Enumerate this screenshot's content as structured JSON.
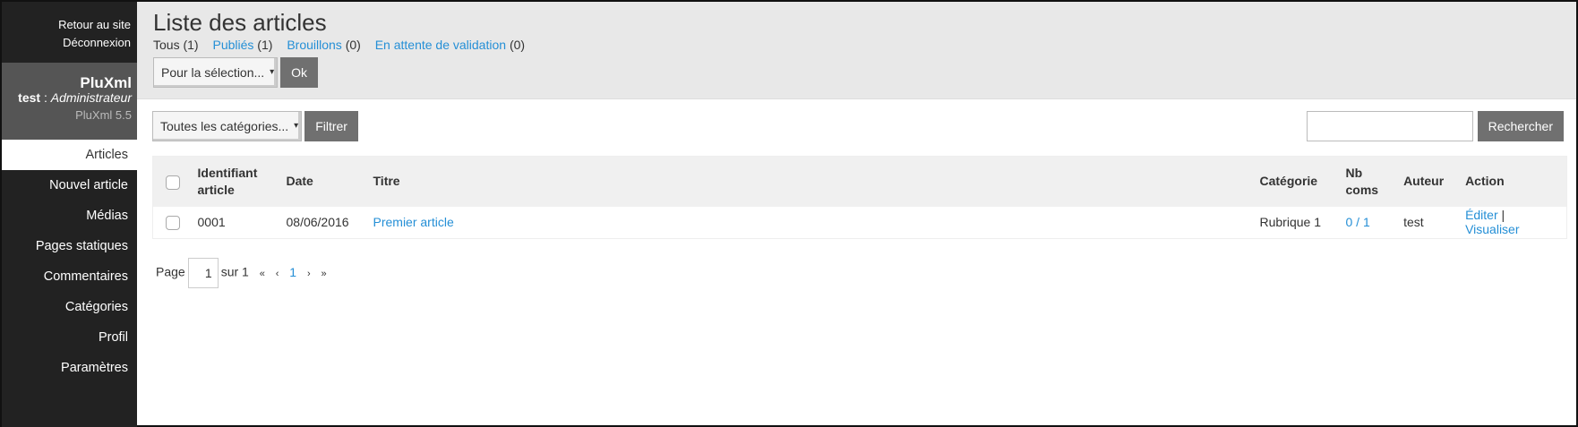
{
  "sidebar": {
    "back_link": "Retour au site",
    "logout_link": "Déconnexion",
    "app_name": "PluXml",
    "user_name": "test",
    "user_role": "Administrateur",
    "version": "PluXml 5.5",
    "items": [
      {
        "label": "Articles",
        "active": true
      },
      {
        "label": "Nouvel article"
      },
      {
        "label": "Médias"
      },
      {
        "label": "Pages statiques"
      },
      {
        "label": "Commentaires"
      },
      {
        "label": "Catégories"
      },
      {
        "label": "Profil"
      },
      {
        "label": "Paramètres"
      }
    ]
  },
  "header": {
    "title": "Liste des articles",
    "filters": [
      {
        "label": "Tous",
        "count": "(1)"
      },
      {
        "label": "Publiés",
        "count": "(1)"
      },
      {
        "label": "Brouillons",
        "count": "(0)"
      },
      {
        "label": "En attente de validation",
        "count": "(0)"
      }
    ],
    "selection_select": "Pour la sélection...",
    "ok_button": "Ok"
  },
  "toolbar": {
    "category_select": "Toutes les catégories...",
    "filter_button": "Filtrer",
    "search_value": "",
    "search_button": "Rechercher"
  },
  "table": {
    "headers": {
      "id": "Identifiant article",
      "date": "Date",
      "title": "Titre",
      "category": "Catégorie",
      "coms": "Nb coms",
      "author": "Auteur",
      "action": "Action"
    },
    "rows": [
      {
        "id": "0001",
        "date": "08/06/2016",
        "title": "Premier article",
        "category": "Rubrique 1",
        "coms": "0 / 1",
        "author": "test",
        "edit": "Éditer",
        "sep": "|",
        "view": "Visualiser"
      }
    ]
  },
  "pager": {
    "label": "Page",
    "current": "1",
    "of": "sur 1",
    "first": "«",
    "prev": "‹",
    "page": "1",
    "next": "›",
    "last": "»"
  },
  "colors": {
    "sidebar": "#222222",
    "user_block": "#555555",
    "link": "#258fd6",
    "button": "#707070",
    "header_bg": "#e8e8e8"
  }
}
